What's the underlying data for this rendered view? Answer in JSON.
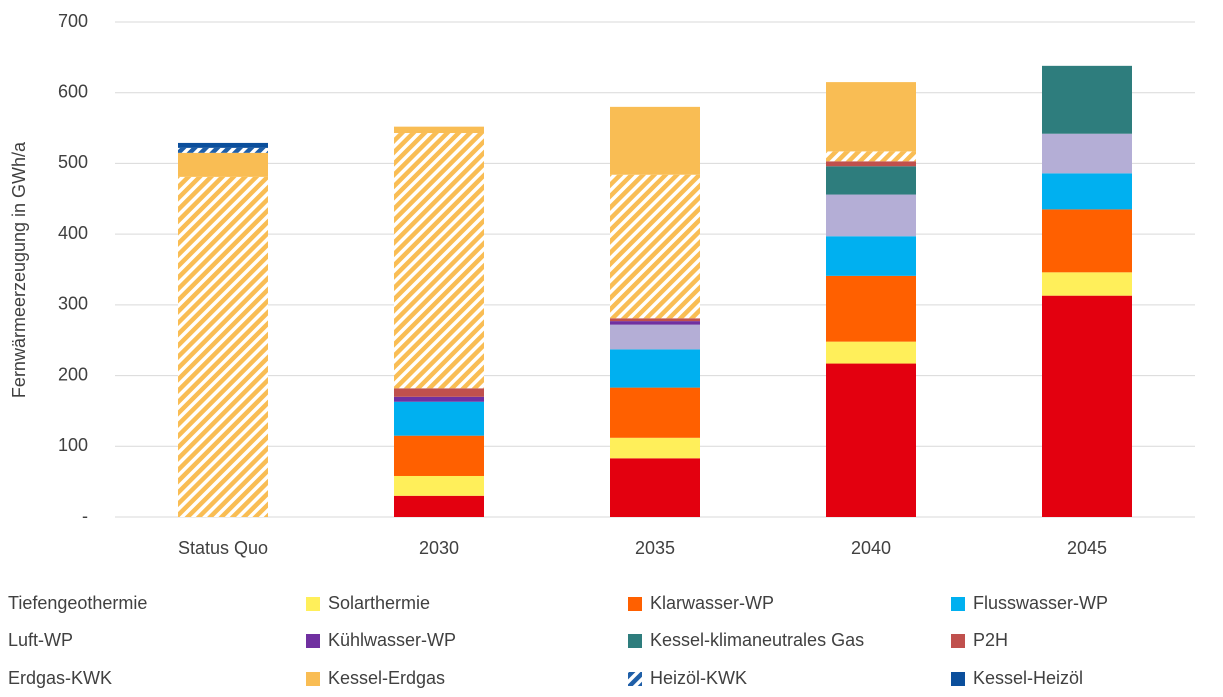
{
  "chart_data": {
    "type": "stacked_bar",
    "y_label": "Fernwärmeerzeugung in GWh/a",
    "categories": [
      "Status Quo",
      "2030",
      "2035",
      "2040",
      "2045"
    ],
    "ylim": [
      0,
      700
    ],
    "yticks": [
      {
        "value": 0,
        "label": "-"
      },
      100,
      200,
      300,
      400,
      500,
      600,
      700
    ],
    "grid": true,
    "legend": "bottom",
    "series": [
      {
        "name": "Tiefengeothermie",
        "color": "#e3000f",
        "values": [
          0,
          30,
          83,
          217,
          313
        ]
      },
      {
        "name": "Solarthermie",
        "color": "#ffef5a",
        "values": [
          0,
          28,
          29,
          31,
          33
        ]
      },
      {
        "name": "Klarwasser-WP",
        "color": "#ff6000",
        "values": [
          0,
          57,
          71,
          93,
          89
        ]
      },
      {
        "name": "Flusswasser-WP",
        "color": "#00b0f0",
        "values": [
          0,
          48,
          54,
          56,
          51
        ]
      },
      {
        "name": "Luft-WP",
        "color": "#b4aed6",
        "values": [
          0,
          0,
          35,
          59,
          56
        ]
      },
      {
        "name": "Kühlwasser-WP",
        "color": "#7030a0",
        "values": [
          0,
          7,
          5,
          0,
          0
        ]
      },
      {
        "name": "Kessel-klimaneutrales Gas",
        "color": "#2e7d7d",
        "values": [
          0,
          0,
          0,
          40,
          96
        ]
      },
      {
        "name": "P2H",
        "color": "#c0504d",
        "values": [
          0,
          12,
          4,
          7,
          0
        ]
      },
      {
        "name": "Erdgas-KWK",
        "color": "#f9bd54",
        "hatched": true,
        "values": [
          481,
          361,
          203,
          14,
          0
        ]
      },
      {
        "name": "Kessel-Erdgas",
        "color": "#f9bd54",
        "values": [
          34,
          9,
          96,
          98,
          0
        ]
      },
      {
        "name": "Heizöl-KWK",
        "color": "#1f5fa8",
        "hatched": true,
        "values": [
          7,
          0,
          0,
          0,
          0
        ]
      },
      {
        "name": "Kessel-Heizöl",
        "color": "#0b4f9c",
        "values": [
          7,
          0,
          0,
          0,
          0
        ]
      }
    ]
  }
}
